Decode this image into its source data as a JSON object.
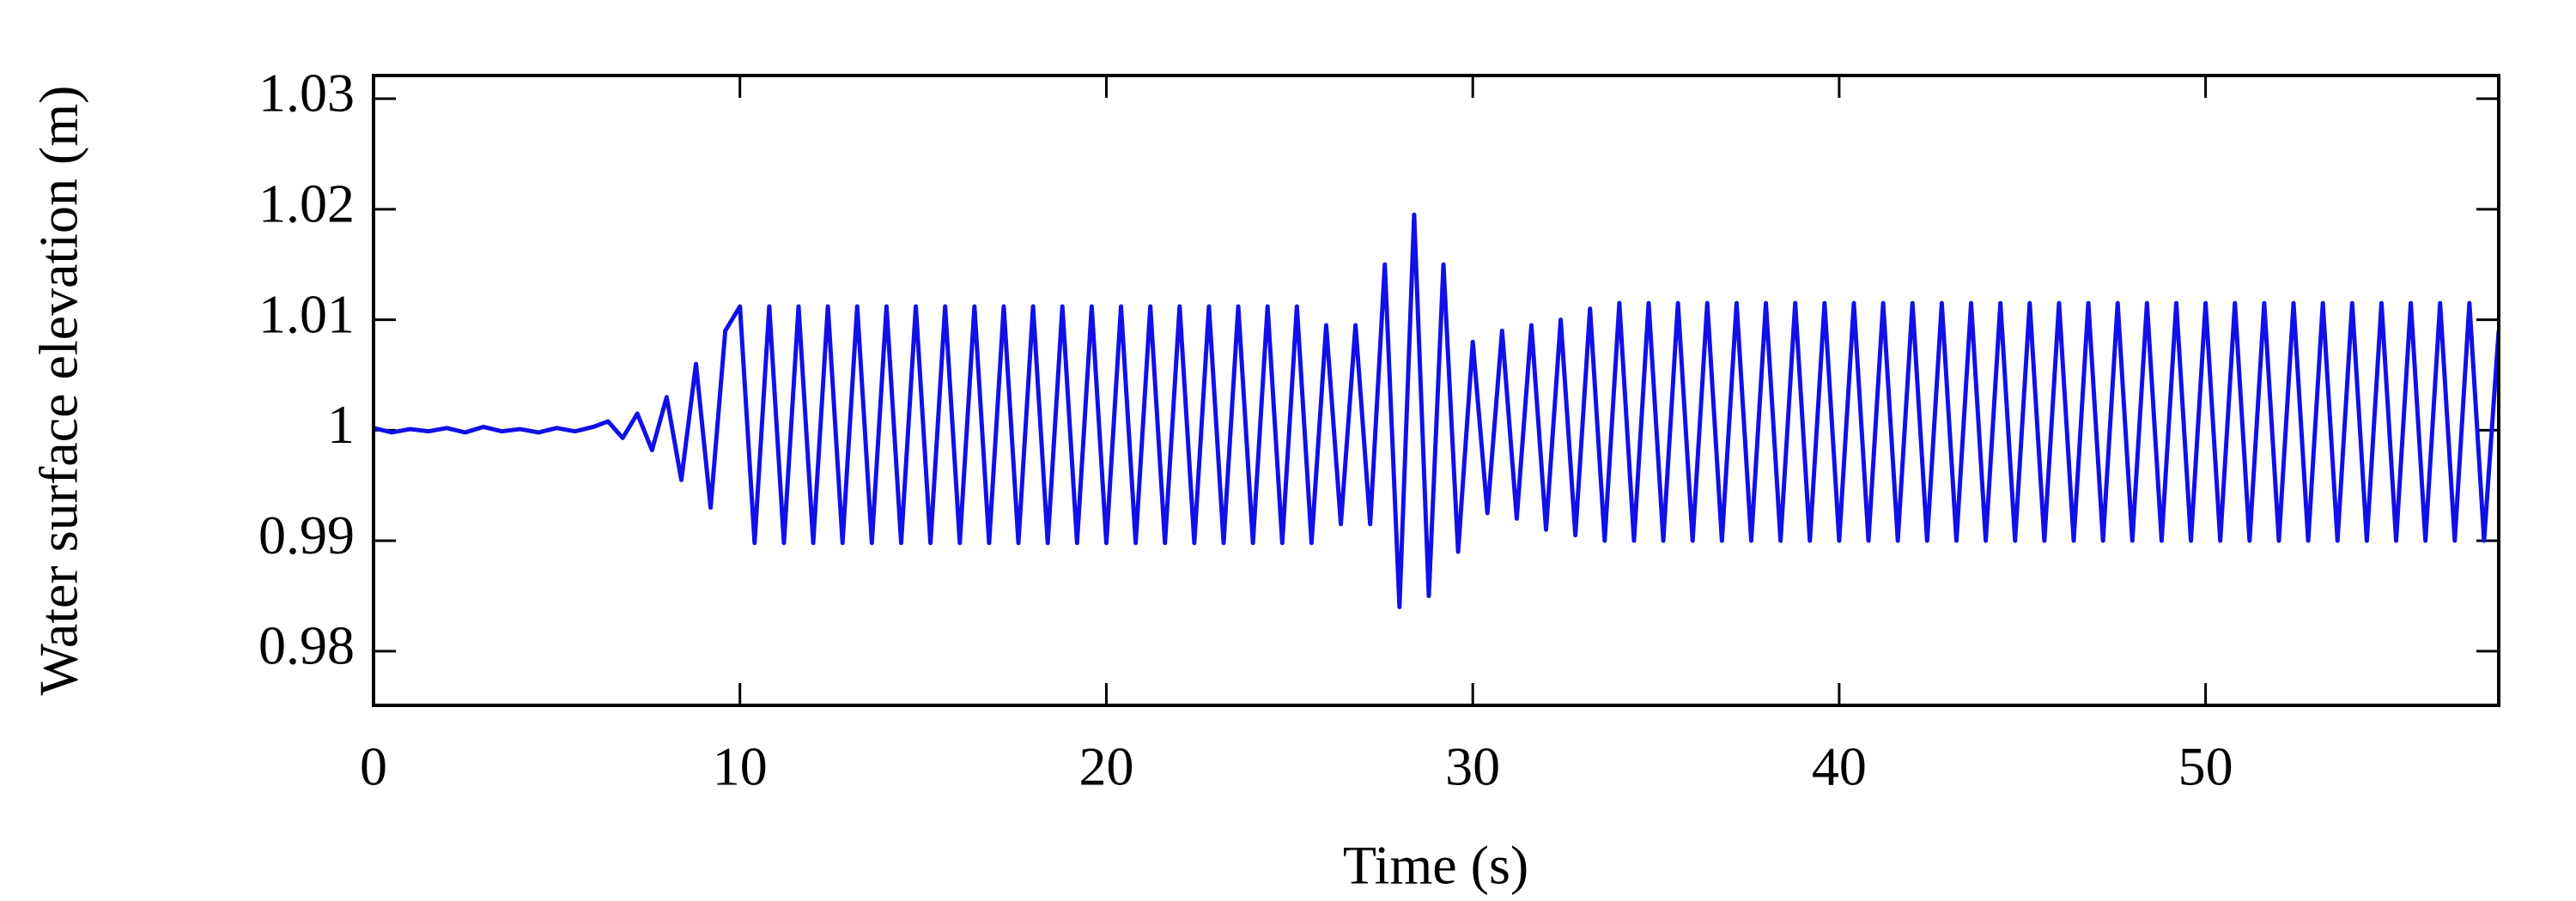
{
  "chart_data": {
    "type": "line",
    "xlabel": "Time (s)",
    "ylabel": "Water surface elevation (m)",
    "color": "#1010e8",
    "xlim": [
      0,
      58
    ],
    "xticks": [
      0,
      10,
      20,
      30,
      40,
      50
    ],
    "ylim": [
      0.9751,
      1.0321
    ],
    "yticks": [
      0.98,
      0.99,
      1,
      1.01,
      1.02,
      1.03
    ],
    "x": [
      0,
      0.5,
      1,
      1.5,
      2,
      2.5,
      3,
      3.5,
      4,
      4.5,
      5,
      5.5,
      6,
      6.4,
      6.8,
      7.2,
      7.6,
      8.0,
      8.4,
      8.8,
      9.2,
      9.6,
      10.0,
      10.4,
      10.8,
      11.2,
      11.6,
      12.0,
      12.4,
      12.8,
      13.2,
      13.6,
      14.0,
      14.4,
      14.8,
      15.2,
      15.6,
      16.0,
      16.4,
      16.8,
      17.2,
      17.6,
      18.0,
      18.4,
      18.8,
      19.2,
      19.6,
      20.0,
      20.4,
      20.8,
      21.2,
      21.6,
      22.0,
      22.4,
      22.8,
      23.2,
      23.6,
      24.0,
      24.4,
      24.8,
      25.2,
      25.6,
      26.0,
      26.4,
      26.8,
      27.2,
      27.6,
      28.0,
      28.4,
      28.8,
      29.2,
      29.6,
      30.0,
      30.4,
      30.8,
      31.2,
      31.6,
      32.0,
      32.4,
      32.8,
      33.2,
      33.6,
      34.0,
      34.4,
      34.8,
      35.2,
      35.6,
      36.0,
      36.4,
      36.8,
      37.2,
      37.6,
      38.0,
      38.4,
      38.8,
      39.2,
      39.6,
      40.0,
      40.4,
      40.8,
      41.2,
      41.6,
      42.0,
      42.4,
      42.8,
      43.2,
      43.6,
      44.0,
      44.4,
      44.8,
      45.2,
      45.6,
      46.0,
      46.4,
      46.8,
      47.2,
      47.6,
      48.0,
      48.4,
      48.8,
      49.2,
      49.6,
      50.0,
      50.4,
      50.8,
      51.2,
      51.6,
      52.0,
      52.4,
      52.8,
      53.2,
      53.6,
      54.0,
      54.4,
      54.8,
      55.2,
      55.6,
      56.0,
      56.4,
      56.8,
      57.2,
      57.6,
      58.0
    ],
    "values": [
      1.0002,
      0.9998,
      1.0001,
      0.9999,
      1.0002,
      0.9998,
      1.0003,
      0.9999,
      1.0001,
      0.9998,
      1.0002,
      0.9999,
      1.0003,
      1.0008,
      0.9993,
      1.0015,
      0.9982,
      1.003,
      0.9955,
      1.006,
      0.993,
      1.009,
      1.0112,
      0.9898,
      1.0112,
      0.9898,
      1.0112,
      0.9898,
      1.0112,
      0.9898,
      1.0112,
      0.9898,
      1.0112,
      0.9898,
      1.0112,
      0.9898,
      1.0112,
      0.9898,
      1.0112,
      0.9898,
      1.0112,
      0.9898,
      1.0112,
      0.9898,
      1.0112,
      0.9898,
      1.0112,
      0.9898,
      1.0112,
      0.9898,
      1.0112,
      0.9898,
      1.0112,
      0.9898,
      1.0112,
      0.9898,
      1.0112,
      0.9898,
      1.0112,
      0.9898,
      1.0112,
      0.9898,
      1.0095,
      0.9915,
      1.0095,
      0.9915,
      1.015,
      0.984,
      1.0195,
      0.985,
      1.015,
      0.989,
      1.008,
      0.9925,
      1.009,
      0.992,
      1.0095,
      0.991,
      1.01,
      0.9905,
      1.011,
      0.99,
      1.0115,
      0.99,
      1.0115,
      0.99,
      1.0115,
      0.99,
      1.0115,
      0.99,
      1.0115,
      0.99,
      1.0115,
      0.99,
      1.0115,
      0.99,
      1.0115,
      0.99,
      1.0115,
      0.99,
      1.0115,
      0.99,
      1.0115,
      0.99,
      1.0115,
      0.99,
      1.0115,
      0.99,
      1.0115,
      0.99,
      1.0115,
      0.99,
      1.0115,
      0.99,
      1.0115,
      0.99,
      1.0115,
      0.99,
      1.0115,
      0.99,
      1.0115,
      0.99,
      1.0115,
      0.99,
      1.0115,
      0.99,
      1.0115,
      0.99,
      1.0115,
      0.99,
      1.0115,
      0.99,
      1.0115,
      0.99,
      1.0115,
      0.99,
      1.0115,
      0.99,
      1.0115,
      0.99,
      1.0115,
      0.99,
      1.009
    ]
  }
}
